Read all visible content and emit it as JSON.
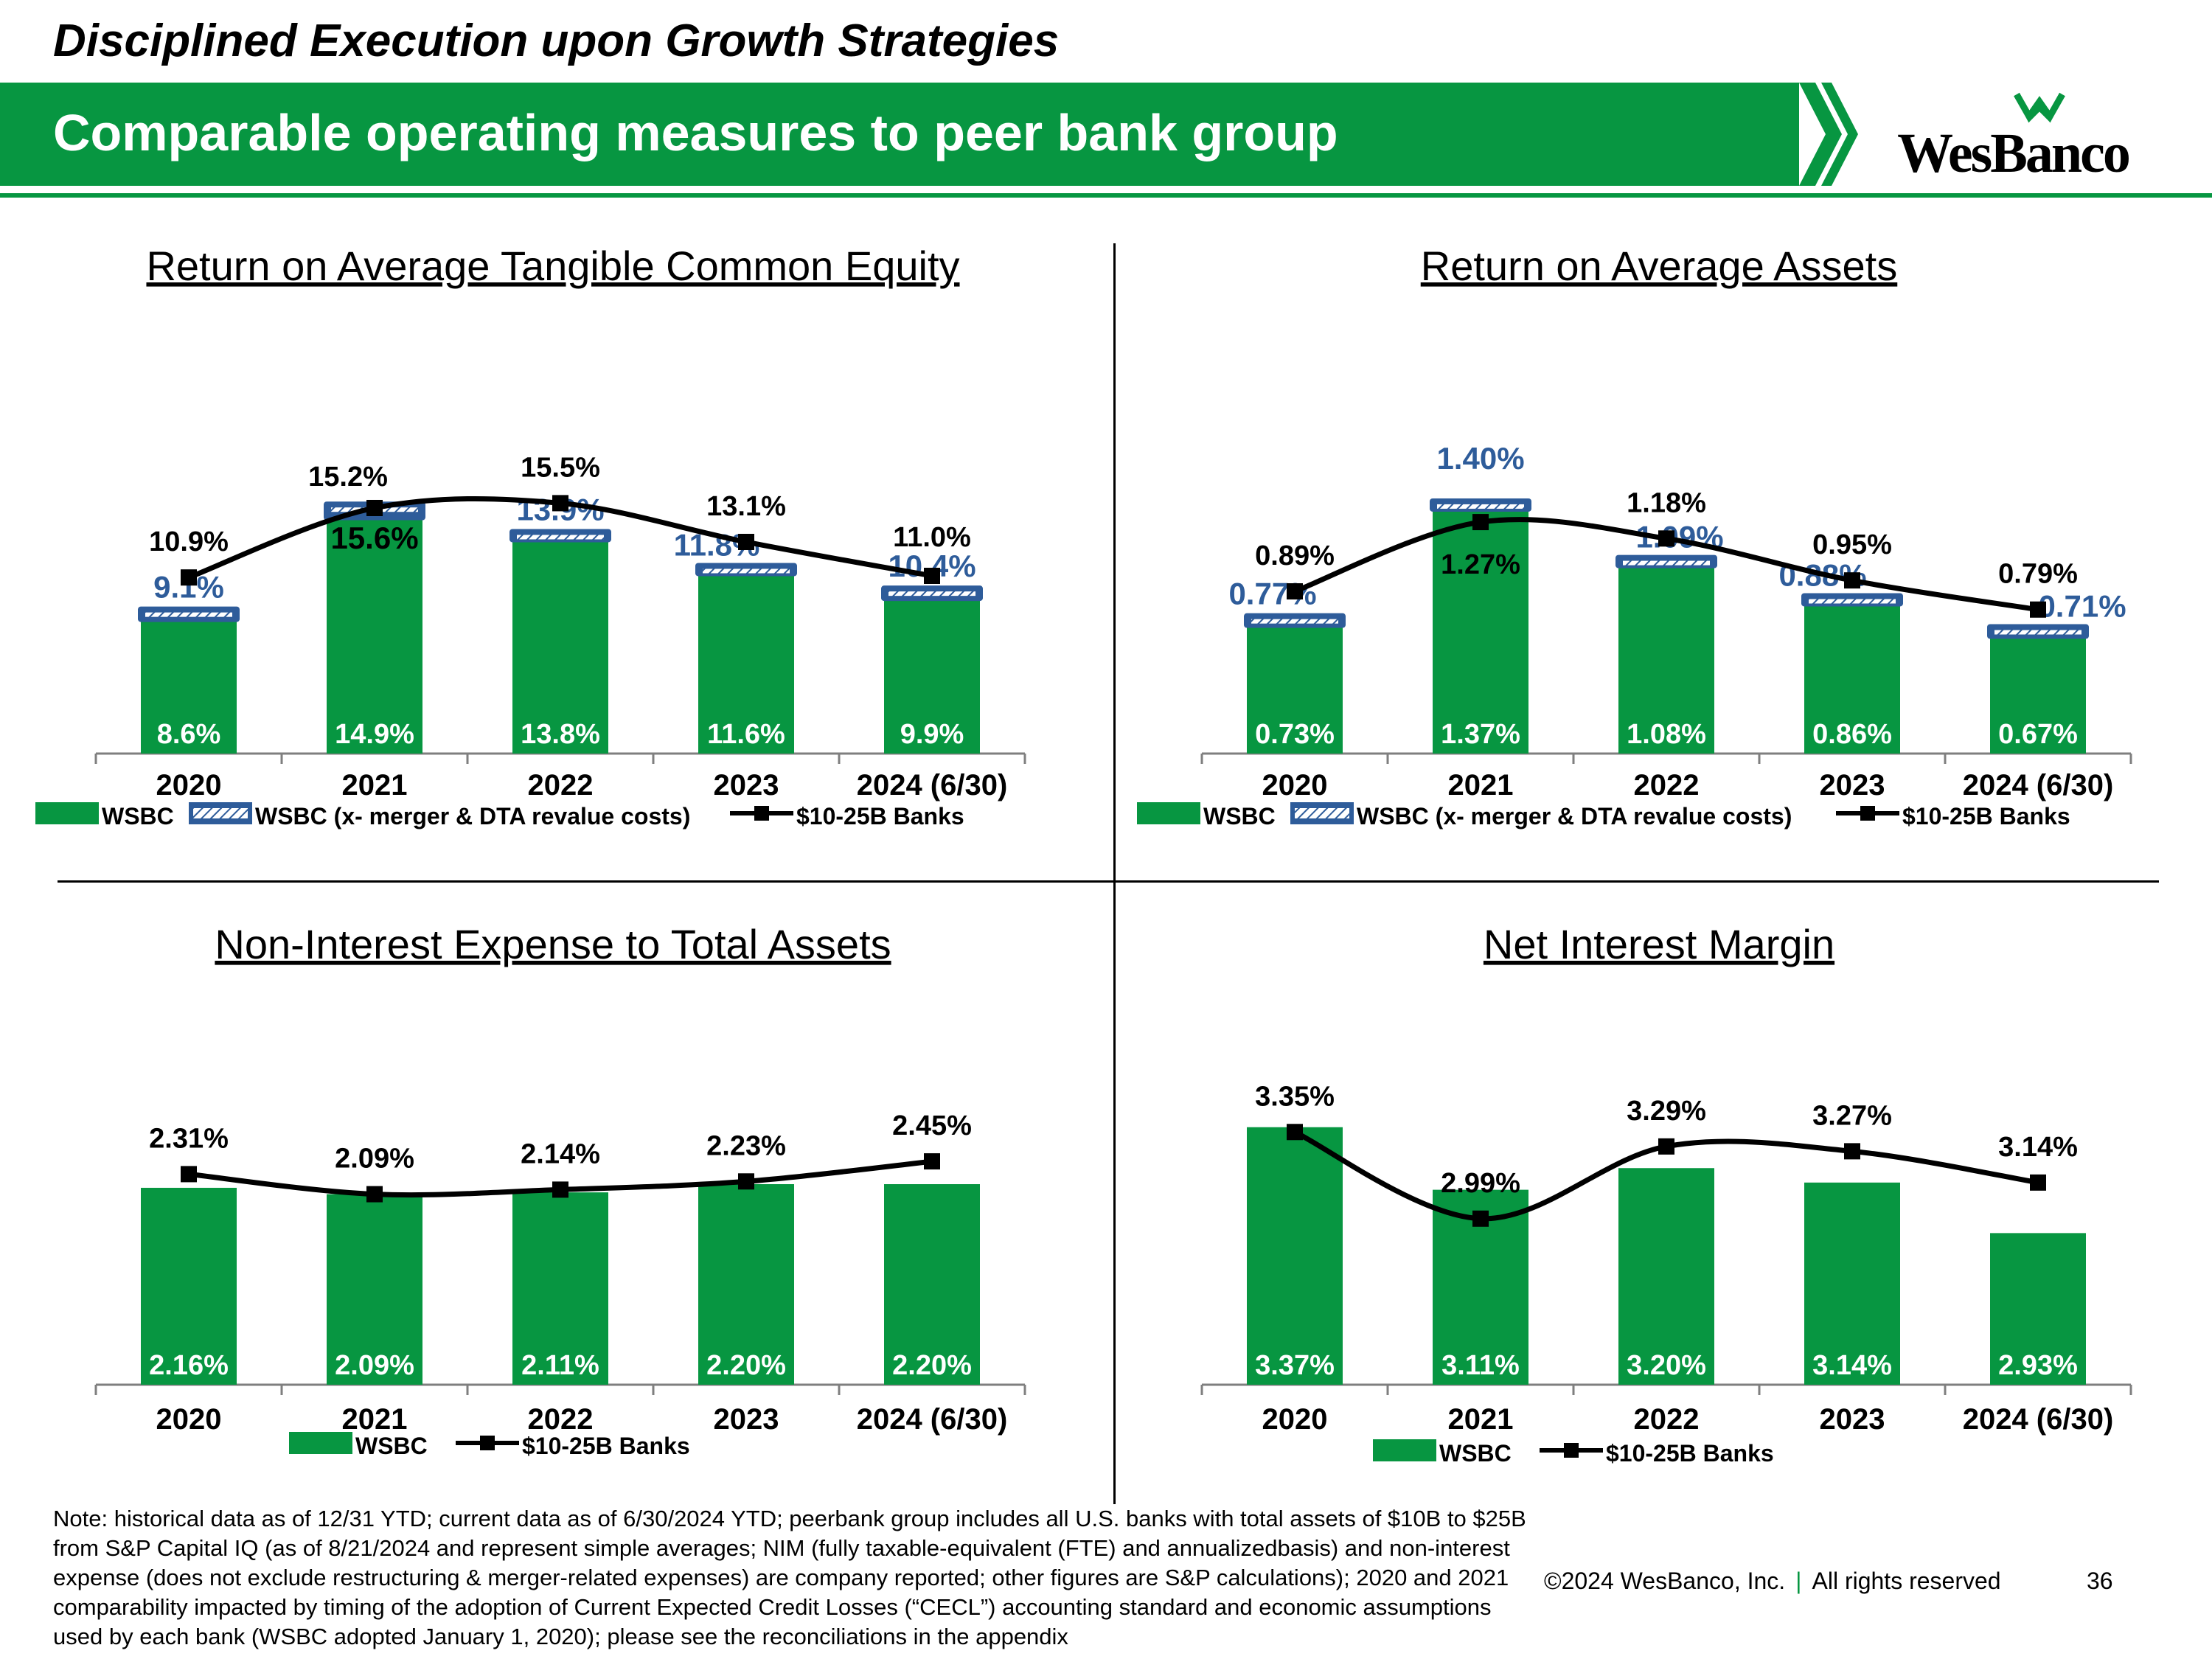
{
  "header": {
    "kicker": "Disciplined Execution upon Growth Strategies",
    "title": "Comparable operating measures to peer bank group",
    "logo_text": "WesBanco",
    "brand_color": "#079641",
    "accent_color": "#2E5C9A"
  },
  "chart_data": [
    {
      "type": "bar",
      "title": "Return on Average Tangible Common Equity",
      "categories": [
        "2020",
        "2021",
        "2022",
        "2023",
        "2024 (6/30)"
      ],
      "ylim": [
        0,
        22
      ],
      "series": [
        {
          "name": "WSBC",
          "kind": "bar",
          "values": [
            8.6,
            14.9,
            13.8,
            11.6,
            9.9
          ],
          "labels": [
            "8.6%",
            "14.9%",
            "13.8%",
            "11.6%",
            "9.9%"
          ]
        },
        {
          "name": "WSBC (x- merger & DTA revalue costs)",
          "kind": "bar-cap",
          "values": [
            9.1,
            15.6,
            13.9,
            11.8,
            10.4
          ],
          "labels": [
            "9.1%",
            "15.6%",
            "13.9%",
            "11.8%",
            "10.4%"
          ]
        },
        {
          "name": "$10-25B Banks",
          "kind": "line",
          "values": [
            10.9,
            15.2,
            15.5,
            13.1,
            11.0
          ],
          "labels": [
            "10.9%",
            "15.2%",
            "15.5%",
            "13.1%",
            "11.0%"
          ]
        }
      ]
    },
    {
      "type": "bar",
      "title": "Return on Average Assets",
      "categories": [
        "2020",
        "2021",
        "2022",
        "2023",
        "2024 (6/30)"
      ],
      "ylim": [
        0,
        1.95
      ],
      "series": [
        {
          "name": "WSBC",
          "kind": "bar",
          "values": [
            0.73,
            1.37,
            1.08,
            0.86,
            0.67
          ],
          "labels": [
            "0.73%",
            "1.37%",
            "1.08%",
            "0.86%",
            "0.67%"
          ]
        },
        {
          "name": "WSBC (x- merger & DTA revalue costs)",
          "kind": "bar-cap",
          "values": [
            0.77,
            1.4,
            1.09,
            0.88,
            0.71
          ],
          "labels": [
            "0.77%",
            "1.40%",
            "1.09%",
            "0.88%",
            "0.71%"
          ]
        },
        {
          "name": "$10-25B Banks",
          "kind": "line",
          "values": [
            0.89,
            1.27,
            1.18,
            0.95,
            0.79
          ],
          "labels": [
            "0.89%",
            "1.27%",
            "1.18%",
            "0.95%",
            "0.79%"
          ]
        }
      ]
    },
    {
      "type": "bar",
      "title": "Non-Interest Expense to Total Assets",
      "categories": [
        "2020",
        "2021",
        "2022",
        "2023",
        "2024 (6/30)"
      ],
      "ylim": [
        0,
        3.3
      ],
      "series": [
        {
          "name": "WSBC",
          "kind": "bar",
          "values": [
            2.16,
            2.09,
            2.11,
            2.2,
            2.2
          ],
          "labels": [
            "2.16%",
            "2.09%",
            "2.11%",
            "2.20%",
            "2.20%"
          ]
        },
        {
          "name": "$10-25B Banks",
          "kind": "line",
          "values": [
            2.31,
            2.09,
            2.14,
            2.23,
            2.45
          ],
          "labels": [
            "2.31%",
            "2.09%",
            "2.14%",
            "2.23%",
            "2.45%"
          ]
        }
      ]
    },
    {
      "type": "bar",
      "title": "Net Interest Margin",
      "categories": [
        "2020",
        "2021",
        "2022",
        "2023",
        "2024 (6/30)"
      ],
      "ylim": [
        2.3,
        3.55
      ],
      "series": [
        {
          "name": "WSBC",
          "kind": "bar",
          "values": [
            3.37,
            3.11,
            3.2,
            3.14,
            2.93
          ],
          "labels": [
            "3.37%",
            "3.11%",
            "3.20%",
            "3.14%",
            "2.93%"
          ]
        },
        {
          "name": "$10-25B Banks",
          "kind": "line",
          "values": [
            3.35,
            2.99,
            3.29,
            3.27,
            3.14
          ],
          "labels": [
            "3.35%",
            "2.99%",
            "3.29%",
            "3.27%",
            "3.14%"
          ]
        }
      ]
    }
  ],
  "footer": {
    "note": "Note: historical data as of 12/31 YTD; current data as of 6/30/2024 YTD; peerbank group includes all U.S. banks with total assets of $10B to $25B from S&P Capital IQ (as of 8/21/2024 and represent simple averages; NIM (fully taxable-equivalent (FTE) and annualizedbasis) and non-interest expense (does not exclude restructuring & merger-related expenses) are company reported; other figures are S&P calculations); 2020 and 2021 comparability impacted by timing of the adoption of Current Expected Credit Losses (“CECL”) accounting standard and economic assumptions used by each bank (WSBC adopted January 1, 2020); please see the reconciliations in the appendix",
    "copyright": "©2024 WesBanco, Inc.",
    "separator": "|",
    "rights": "All rights reserved",
    "page": "36"
  }
}
